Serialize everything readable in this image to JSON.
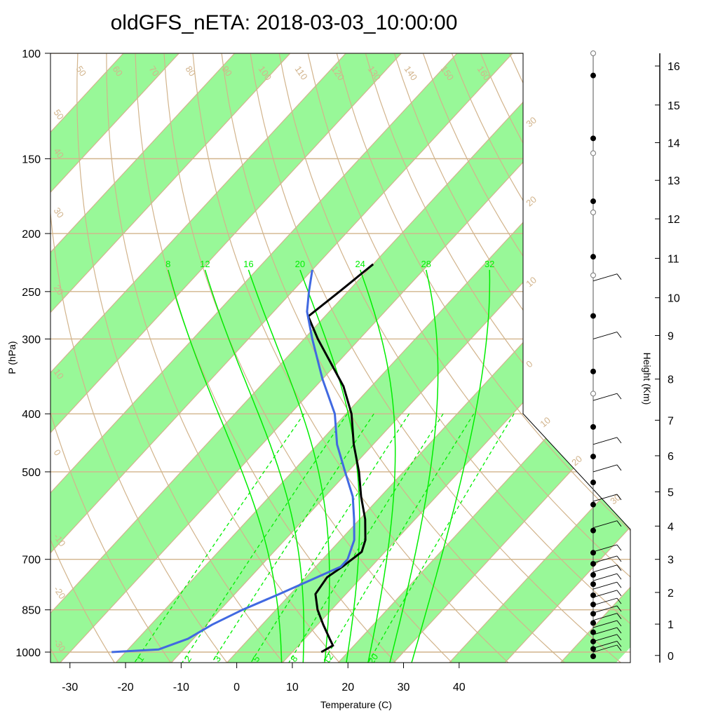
{
  "chart_data": {
    "type": "line",
    "title": "oldGFS_nETA: 2018-03-03_10:00:00",
    "xlabel": "Temperature (C)",
    "ylabel": "P (hPa)",
    "y2label": "Height (Km)",
    "x_ticks": [
      -30,
      -20,
      -10,
      0,
      10,
      20,
      30,
      40
    ],
    "xlim": [
      -33.5,
      51.5
    ],
    "p_ticks": [
      100,
      150,
      200,
      250,
      300,
      400,
      500,
      700,
      850,
      1000
    ],
    "plim": [
      100,
      1050
    ],
    "height_ticks": [
      {
        "km": 16,
        "p": 105
      },
      {
        "km": 15,
        "p": 122
      },
      {
        "km": 14,
        "p": 141
      },
      {
        "km": 13,
        "p": 163
      },
      {
        "km": 12,
        "p": 189
      },
      {
        "km": 11,
        "p": 220
      },
      {
        "km": 10,
        "p": 256
      },
      {
        "km": 9,
        "p": 296
      },
      {
        "km": 8,
        "p": 350
      },
      {
        "km": 7,
        "p": 410
      },
      {
        "km": 6,
        "p": 470
      },
      {
        "km": 5,
        "p": 540
      },
      {
        "km": 4,
        "p": 616
      },
      {
        "km": 3,
        "p": 700
      },
      {
        "km": 2,
        "p": 795
      },
      {
        "km": 1,
        "p": 898
      },
      {
        "km": 0,
        "p": 1013
      }
    ],
    "temperature_color": "#000000",
    "dewpoint_color": "#4169E1",
    "isotherm_color": "#D2B48C",
    "band_color": "#98F898",
    "mixing_color": "#00EE00",
    "isotherm_labels": [
      50,
      40,
      30,
      20,
      10,
      0,
      -10,
      -20,
      -30
    ],
    "adiabat_labels": [
      50,
      60,
      70,
      80,
      90,
      100,
      110,
      120,
      130,
      140,
      150,
      160
    ],
    "moist_labels": [
      8,
      12,
      16,
      20,
      24,
      28,
      32
    ],
    "mixing_labels": [
      1,
      2,
      3,
      5,
      8,
      12,
      20
    ],
    "right_isotherm_labels": [
      30,
      20,
      10,
      0,
      10,
      20,
      30
    ],
    "temperature_profile": [
      {
        "p": 1000,
        "t": 15.2
      },
      {
        "p": 975,
        "t": 16.2
      },
      {
        "p": 950,
        "t": 14.5
      },
      {
        "p": 900,
        "t": 11.0
      },
      {
        "p": 850,
        "t": 7.5
      },
      {
        "p": 800,
        "t": 4.5
      },
      {
        "p": 750,
        "t": 3.8
      },
      {
        "p": 720,
        "t": 4.8
      },
      {
        "p": 680,
        "t": 5.8
      },
      {
        "p": 650,
        "t": 4.5
      },
      {
        "p": 600,
        "t": 1.0
      },
      {
        "p": 550,
        "t": -3.5
      },
      {
        "p": 500,
        "t": -8.0
      },
      {
        "p": 450,
        "t": -13.5
      },
      {
        "p": 400,
        "t": -19.0
      },
      {
        "p": 360,
        "t": -25.0
      },
      {
        "p": 300,
        "t": -37.5
      },
      {
        "p": 275,
        "t": -43.0
      },
      {
        "p": 250,
        "t": -41.5
      },
      {
        "p": 225,
        "t": -40.0
      }
    ],
    "dewpoint_profile": [
      {
        "p": 1000,
        "td": -22.5
      },
      {
        "p": 990,
        "td": -14.5
      },
      {
        "p": 950,
        "td": -11.0
      },
      {
        "p": 900,
        "td": -9.0
      },
      {
        "p": 850,
        "td": -6.0
      },
      {
        "p": 800,
        "td": -2.0
      },
      {
        "p": 750,
        "td": 2.0
      },
      {
        "p": 720,
        "td": 4.5
      },
      {
        "p": 700,
        "td": 4.5
      },
      {
        "p": 650,
        "td": 2.5
      },
      {
        "p": 600,
        "td": -1.0
      },
      {
        "p": 550,
        "td": -5.0
      },
      {
        "p": 500,
        "td": -10.5
      },
      {
        "p": 450,
        "td": -16.5
      },
      {
        "p": 400,
        "td": -22.0
      },
      {
        "p": 350,
        "td": -30.0
      },
      {
        "p": 300,
        "td": -38.5
      },
      {
        "p": 270,
        "td": -44.0
      },
      {
        "p": 250,
        "td": -47.0
      },
      {
        "p": 230,
        "td": -50.0
      }
    ],
    "wind_levels_hpa": [
      1000,
      985,
      960,
      935,
      910,
      885,
      860,
      835,
      810,
      785,
      760,
      735,
      710,
      680,
      620,
      560,
      500,
      450,
      380,
      300,
      240
    ],
    "levels_filled_km": [
      0,
      0.2,
      0.4,
      0.65,
      0.9,
      1.15,
      1.4,
      1.65,
      1.95,
      2.2,
      2.5,
      2.8,
      3.4,
      4.1,
      4.7,
      5.4,
      6.2,
      7.7,
      9.2,
      10.8,
      12.3,
      14.0,
      15.7
    ],
    "levels_open_km": [
      7.1,
      10.3,
      12.0,
      13.6,
      16.3
    ]
  }
}
